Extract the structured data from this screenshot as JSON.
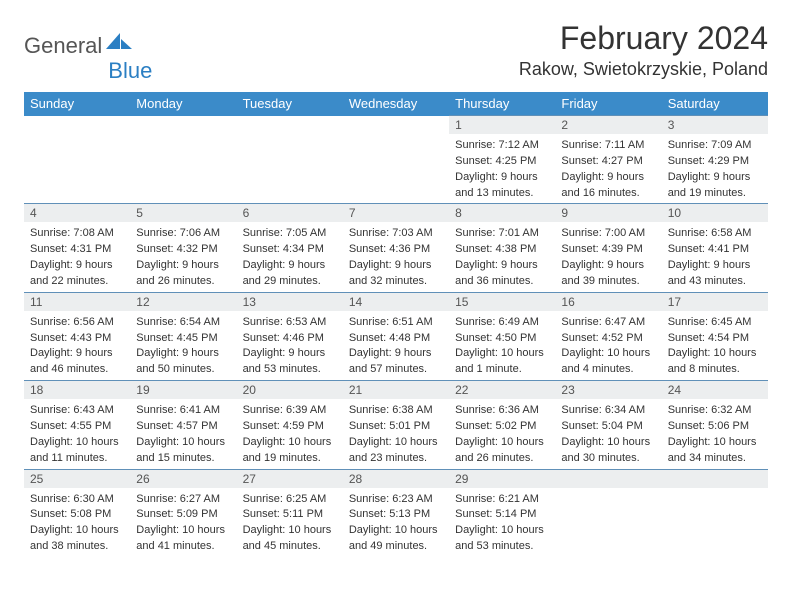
{
  "brand": {
    "word1": "General",
    "word2": "Blue"
  },
  "title": "February 2024",
  "location": "Rakow, Swietokrzyskie, Poland",
  "days": [
    "Sunday",
    "Monday",
    "Tuesday",
    "Wednesday",
    "Thursday",
    "Friday",
    "Saturday"
  ],
  "colors": {
    "headerBg": "#3b8bc9",
    "headerText": "#ffffff",
    "dayNumBg": "#eceeef",
    "border": "#6090b8",
    "brandBlue": "#2b7fc3",
    "text": "#333333"
  },
  "fonts": {
    "title_fontsize": 32,
    "location_fontsize": 18,
    "dayheader_fontsize": 13,
    "daynum_fontsize": 12,
    "detail_fontsize": 11
  },
  "weeks": [
    [
      null,
      null,
      null,
      null,
      {
        "num": "1",
        "sunrise": "Sunrise: 7:12 AM",
        "sunset": "Sunset: 4:25 PM",
        "daylight1": "Daylight: 9 hours",
        "daylight2": "and 13 minutes."
      },
      {
        "num": "2",
        "sunrise": "Sunrise: 7:11 AM",
        "sunset": "Sunset: 4:27 PM",
        "daylight1": "Daylight: 9 hours",
        "daylight2": "and 16 minutes."
      },
      {
        "num": "3",
        "sunrise": "Sunrise: 7:09 AM",
        "sunset": "Sunset: 4:29 PM",
        "daylight1": "Daylight: 9 hours",
        "daylight2": "and 19 minutes."
      }
    ],
    [
      {
        "num": "4",
        "sunrise": "Sunrise: 7:08 AM",
        "sunset": "Sunset: 4:31 PM",
        "daylight1": "Daylight: 9 hours",
        "daylight2": "and 22 minutes."
      },
      {
        "num": "5",
        "sunrise": "Sunrise: 7:06 AM",
        "sunset": "Sunset: 4:32 PM",
        "daylight1": "Daylight: 9 hours",
        "daylight2": "and 26 minutes."
      },
      {
        "num": "6",
        "sunrise": "Sunrise: 7:05 AM",
        "sunset": "Sunset: 4:34 PM",
        "daylight1": "Daylight: 9 hours",
        "daylight2": "and 29 minutes."
      },
      {
        "num": "7",
        "sunrise": "Sunrise: 7:03 AM",
        "sunset": "Sunset: 4:36 PM",
        "daylight1": "Daylight: 9 hours",
        "daylight2": "and 32 minutes."
      },
      {
        "num": "8",
        "sunrise": "Sunrise: 7:01 AM",
        "sunset": "Sunset: 4:38 PM",
        "daylight1": "Daylight: 9 hours",
        "daylight2": "and 36 minutes."
      },
      {
        "num": "9",
        "sunrise": "Sunrise: 7:00 AM",
        "sunset": "Sunset: 4:39 PM",
        "daylight1": "Daylight: 9 hours",
        "daylight2": "and 39 minutes."
      },
      {
        "num": "10",
        "sunrise": "Sunrise: 6:58 AM",
        "sunset": "Sunset: 4:41 PM",
        "daylight1": "Daylight: 9 hours",
        "daylight2": "and 43 minutes."
      }
    ],
    [
      {
        "num": "11",
        "sunrise": "Sunrise: 6:56 AM",
        "sunset": "Sunset: 4:43 PM",
        "daylight1": "Daylight: 9 hours",
        "daylight2": "and 46 minutes."
      },
      {
        "num": "12",
        "sunrise": "Sunrise: 6:54 AM",
        "sunset": "Sunset: 4:45 PM",
        "daylight1": "Daylight: 9 hours",
        "daylight2": "and 50 minutes."
      },
      {
        "num": "13",
        "sunrise": "Sunrise: 6:53 AM",
        "sunset": "Sunset: 4:46 PM",
        "daylight1": "Daylight: 9 hours",
        "daylight2": "and 53 minutes."
      },
      {
        "num": "14",
        "sunrise": "Sunrise: 6:51 AM",
        "sunset": "Sunset: 4:48 PM",
        "daylight1": "Daylight: 9 hours",
        "daylight2": "and 57 minutes."
      },
      {
        "num": "15",
        "sunrise": "Sunrise: 6:49 AM",
        "sunset": "Sunset: 4:50 PM",
        "daylight1": "Daylight: 10 hours",
        "daylight2": "and 1 minute."
      },
      {
        "num": "16",
        "sunrise": "Sunrise: 6:47 AM",
        "sunset": "Sunset: 4:52 PM",
        "daylight1": "Daylight: 10 hours",
        "daylight2": "and 4 minutes."
      },
      {
        "num": "17",
        "sunrise": "Sunrise: 6:45 AM",
        "sunset": "Sunset: 4:54 PM",
        "daylight1": "Daylight: 10 hours",
        "daylight2": "and 8 minutes."
      }
    ],
    [
      {
        "num": "18",
        "sunrise": "Sunrise: 6:43 AM",
        "sunset": "Sunset: 4:55 PM",
        "daylight1": "Daylight: 10 hours",
        "daylight2": "and 11 minutes."
      },
      {
        "num": "19",
        "sunrise": "Sunrise: 6:41 AM",
        "sunset": "Sunset: 4:57 PM",
        "daylight1": "Daylight: 10 hours",
        "daylight2": "and 15 minutes."
      },
      {
        "num": "20",
        "sunrise": "Sunrise: 6:39 AM",
        "sunset": "Sunset: 4:59 PM",
        "daylight1": "Daylight: 10 hours",
        "daylight2": "and 19 minutes."
      },
      {
        "num": "21",
        "sunrise": "Sunrise: 6:38 AM",
        "sunset": "Sunset: 5:01 PM",
        "daylight1": "Daylight: 10 hours",
        "daylight2": "and 23 minutes."
      },
      {
        "num": "22",
        "sunrise": "Sunrise: 6:36 AM",
        "sunset": "Sunset: 5:02 PM",
        "daylight1": "Daylight: 10 hours",
        "daylight2": "and 26 minutes."
      },
      {
        "num": "23",
        "sunrise": "Sunrise: 6:34 AM",
        "sunset": "Sunset: 5:04 PM",
        "daylight1": "Daylight: 10 hours",
        "daylight2": "and 30 minutes."
      },
      {
        "num": "24",
        "sunrise": "Sunrise: 6:32 AM",
        "sunset": "Sunset: 5:06 PM",
        "daylight1": "Daylight: 10 hours",
        "daylight2": "and 34 minutes."
      }
    ],
    [
      {
        "num": "25",
        "sunrise": "Sunrise: 6:30 AM",
        "sunset": "Sunset: 5:08 PM",
        "daylight1": "Daylight: 10 hours",
        "daylight2": "and 38 minutes."
      },
      {
        "num": "26",
        "sunrise": "Sunrise: 6:27 AM",
        "sunset": "Sunset: 5:09 PM",
        "daylight1": "Daylight: 10 hours",
        "daylight2": "and 41 minutes."
      },
      {
        "num": "27",
        "sunrise": "Sunrise: 6:25 AM",
        "sunset": "Sunset: 5:11 PM",
        "daylight1": "Daylight: 10 hours",
        "daylight2": "and 45 minutes."
      },
      {
        "num": "28",
        "sunrise": "Sunrise: 6:23 AM",
        "sunset": "Sunset: 5:13 PM",
        "daylight1": "Daylight: 10 hours",
        "daylight2": "and 49 minutes."
      },
      {
        "num": "29",
        "sunrise": "Sunrise: 6:21 AM",
        "sunset": "Sunset: 5:14 PM",
        "daylight1": "Daylight: 10 hours",
        "daylight2": "and 53 minutes."
      },
      null,
      null
    ]
  ]
}
